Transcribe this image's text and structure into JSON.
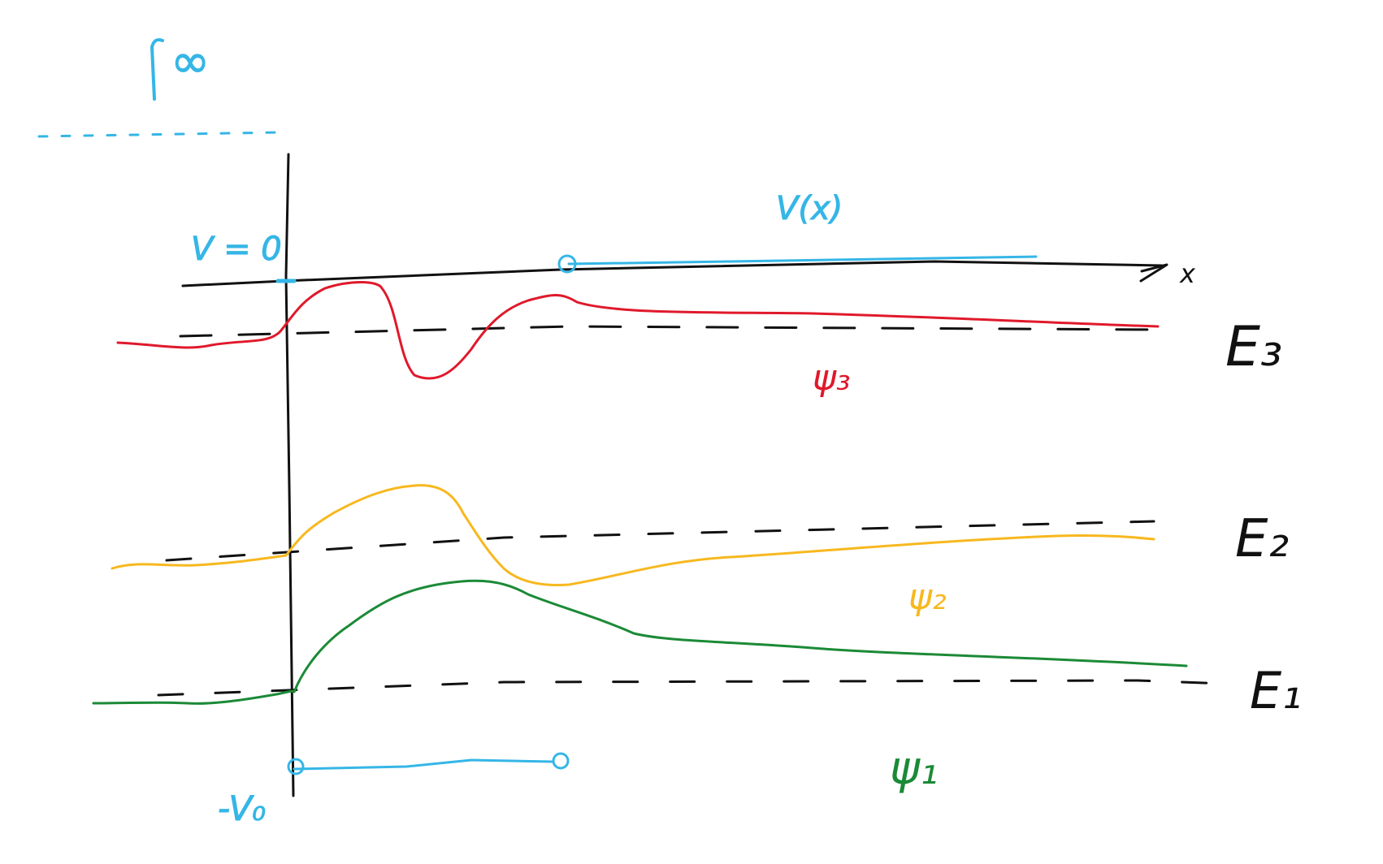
{
  "colors": {
    "axis": "#111111",
    "potential": "#35b6e6",
    "psi3": "#e0192b",
    "psi2": "#f7b81f",
    "psi1": "#1b8a36"
  },
  "labels": {
    "infinity": "∞",
    "v_zero": "V = 0",
    "v_of_x": "V(x)",
    "x_axis": "x",
    "minus_v0": "-V₀",
    "e3": "E₃",
    "e2": "E₂",
    "e1": "E₁",
    "psi3": "ψ₃",
    "psi2": "ψ₂",
    "psi1": "ψ₁"
  },
  "diagram": {
    "type": "finite potential well with wavefunctions",
    "energy_levels": [
      "E₁",
      "E₂",
      "E₃"
    ],
    "wavefunctions": [
      "ψ₁",
      "ψ₂",
      "ψ₃"
    ]
  }
}
